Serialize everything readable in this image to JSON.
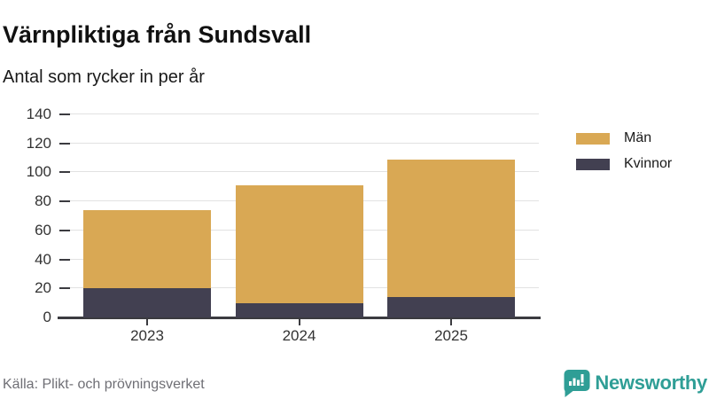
{
  "title": "Värnpliktiga från Sundsvall",
  "subtitle": "Antal som rycker in per år",
  "source": "Källa: Plikt- och prövningsverket",
  "branding": {
    "name": "Newsworthy",
    "icon": "bar-chart-speech-bubble-icon",
    "color": "#2f9e96"
  },
  "colors": {
    "men": "#d9a854",
    "women": "#424051",
    "grid": "#e2e2e2",
    "axis": "#3b3b40",
    "tick_text": "#333333",
    "source_text": "#6f6f75"
  },
  "chart_data": {
    "type": "bar",
    "stacked": true,
    "title": "Värnpliktiga från Sundsvall",
    "subtitle": "Antal som rycker in per år",
    "categories": [
      "2023",
      "2024",
      "2025"
    ],
    "series": [
      {
        "name": "Män",
        "color": "#d9a854",
        "values": [
          54,
          81,
          95
        ]
      },
      {
        "name": "Kvinnor",
        "color": "#424051",
        "values": [
          20,
          10,
          14
        ]
      }
    ],
    "stack_order_bottom_to_top": [
      "Kvinnor",
      "Män"
    ],
    "totals": [
      74,
      91,
      109
    ],
    "ylim": [
      0,
      140
    ],
    "yticks": [
      0,
      20,
      40,
      60,
      80,
      100,
      120,
      140
    ],
    "xlabel": "",
    "ylabel": "",
    "grid": "horizontal",
    "legend_position": "right"
  }
}
